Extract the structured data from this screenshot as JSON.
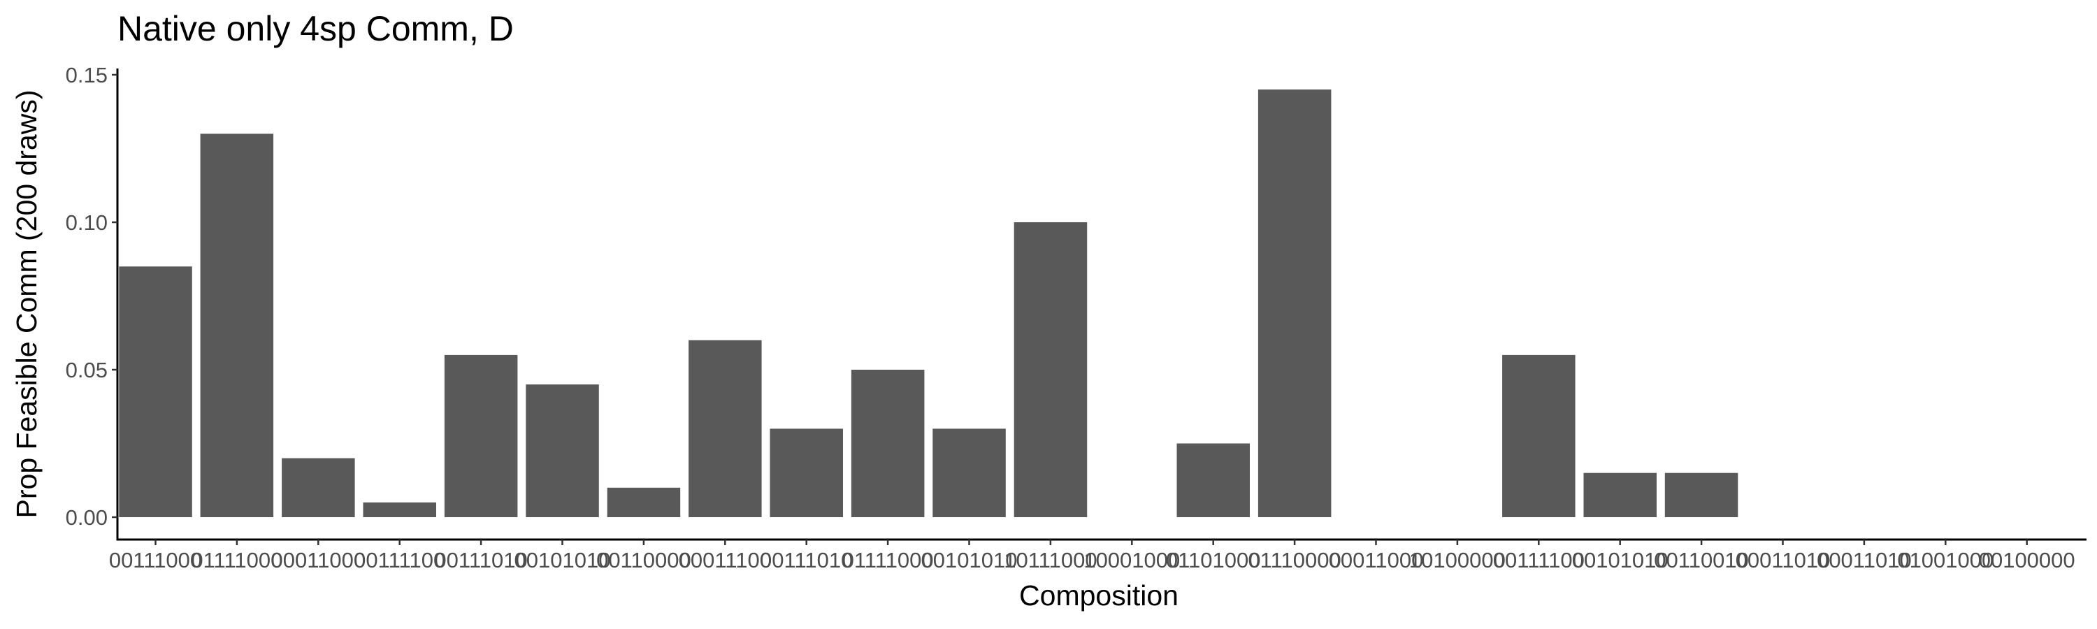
{
  "chart_data": {
    "type": "bar",
    "title": "Native only 4sp Comm, D",
    "xlabel": "Composition",
    "ylabel": "Prop Feasible Comm (200 draws)",
    "ylim": [
      0,
      0.15
    ],
    "yticks": [
      "0.00",
      "0.05",
      "0.10",
      "0.15"
    ],
    "bar_color": "#595959",
    "grid": false,
    "categories": [
      "00111000",
      "01111000",
      "00011000",
      "00111100",
      "00111010",
      "00101010",
      "00110000",
      "00011100",
      "00111010",
      "01111000",
      "00101010",
      "10111000",
      "10001000",
      "01101000",
      "01110000",
      "00011000",
      "10100000",
      "00111100",
      "00101010",
      "00110010",
      "00011010",
      "00011010",
      "01001000",
      "00100000"
    ],
    "values": [
      0.085,
      0.13,
      0.02,
      0.005,
      0.055,
      0.045,
      0.01,
      0.06,
      0.03,
      0.05,
      0.03,
      0.1,
      0,
      0.025,
      0.145,
      0,
      0,
      0.055,
      0.015,
      0.015,
      0,
      0,
      0,
      0
    ]
  }
}
